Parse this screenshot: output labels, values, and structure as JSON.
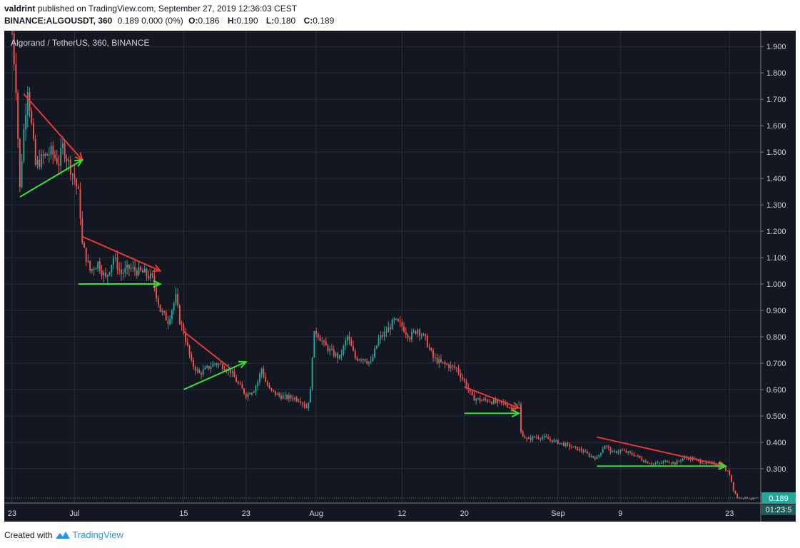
{
  "header": {
    "user": "valdrint",
    "published": "published on TradingView.com, September 27, 2019 12:36:03 CEST",
    "symbol": "BINANCE:ALGOUSDT, 360",
    "quote": "0.189 0.000 (0%)",
    "o_label": "O:",
    "o_value": "0.186",
    "h_label": "H:",
    "h_value": "0.190",
    "l_label": "L:",
    "l_value": "0.180",
    "c_label": "C:",
    "c_value": "0.189"
  },
  "footer": {
    "created_with": "Created with",
    "brand": "TradingView"
  },
  "colors": {
    "background": "#131722",
    "grid": "#2a2e39",
    "up": "#26a69a",
    "down": "#ef5350",
    "text": "#d1d4dc",
    "red_line": "#e53935",
    "green_line": "#33e233",
    "last_price": "#26a69a"
  },
  "chart_data": {
    "type": "candlestick",
    "title": "Algorand / TetherUS, 360, BINANCE",
    "ylim": [
      0.17,
      1.96
    ],
    "y_ticks": [
      "1.900",
      "1.800",
      "1.700",
      "1.600",
      "1.500",
      "1.400",
      "1.300",
      "1.200",
      "1.100",
      "1.000",
      "0.900",
      "0.800",
      "0.700",
      "0.600",
      "0.500",
      "0.400",
      "0.300"
    ],
    "x_ticks": [
      {
        "label": "23",
        "day": 0
      },
      {
        "label": "Jul",
        "day": 8
      },
      {
        "label": "15",
        "day": 22
      },
      {
        "label": "23",
        "day": 30
      },
      {
        "label": "Aug",
        "day": 39
      },
      {
        "label": "12",
        "day": 50
      },
      {
        "label": "20",
        "day": 58
      },
      {
        "label": "Sep",
        "day": 70
      },
      {
        "label": "9",
        "day": 78
      },
      {
        "label": "23",
        "day": 92
      }
    ],
    "day_range": [
      -1,
      96
    ],
    "last_price": "0.189",
    "countdown": "01:23:5",
    "price_path": [
      [
        0.0,
        1.95
      ],
      [
        0.5,
        1.75
      ],
      [
        1.0,
        1.36
      ],
      [
        1.4,
        1.55
      ],
      [
        2.0,
        1.75
      ],
      [
        2.5,
        1.6
      ],
      [
        3.0,
        1.45
      ],
      [
        4.0,
        1.48
      ],
      [
        5.0,
        1.5
      ],
      [
        6.0,
        1.46
      ],
      [
        6.5,
        1.52
      ],
      [
        7.0,
        1.48
      ],
      [
        8.0,
        1.4
      ],
      [
        8.6,
        1.33
      ],
      [
        9.0,
        1.15
      ],
      [
        10.0,
        1.05
      ],
      [
        11.0,
        1.08
      ],
      [
        12.0,
        1.02
      ],
      [
        13.0,
        1.1
      ],
      [
        14.0,
        1.04
      ],
      [
        15.0,
        1.06
      ],
      [
        16.0,
        1.05
      ],
      [
        17.0,
        1.04
      ],
      [
        18.0,
        1.02
      ],
      [
        18.5,
        0.96
      ],
      [
        19.0,
        0.9
      ],
      [
        20.0,
        0.86
      ],
      [
        21.0,
        0.95
      ],
      [
        21.5,
        0.86
      ],
      [
        22.0,
        0.82
      ],
      [
        23.0,
        0.7
      ],
      [
        24.0,
        0.66
      ],
      [
        25.0,
        0.68
      ],
      [
        26.0,
        0.7
      ],
      [
        27.0,
        0.69
      ],
      [
        28.0,
        0.67
      ],
      [
        29.0,
        0.62
      ],
      [
        30.0,
        0.58
      ],
      [
        31.0,
        0.6
      ],
      [
        31.5,
        0.63
      ],
      [
        32.0,
        0.68
      ],
      [
        32.5,
        0.63
      ],
      [
        33.0,
        0.6
      ],
      [
        34.0,
        0.58
      ],
      [
        35.0,
        0.57
      ],
      [
        36.0,
        0.57
      ],
      [
        37.0,
        0.56
      ],
      [
        37.8,
        0.53
      ],
      [
        38.3,
        0.6
      ],
      [
        38.6,
        0.8
      ],
      [
        39.0,
        0.82
      ],
      [
        40.0,
        0.77
      ],
      [
        41.0,
        0.74
      ],
      [
        42.0,
        0.72
      ],
      [
        43.0,
        0.8
      ],
      [
        44.0,
        0.72
      ],
      [
        45.0,
        0.72
      ],
      [
        46.0,
        0.7
      ],
      [
        47.0,
        0.79
      ],
      [
        48.0,
        0.82
      ],
      [
        49.0,
        0.86
      ],
      [
        50.0,
        0.84
      ],
      [
        51.0,
        0.8
      ],
      [
        52.0,
        0.83
      ],
      [
        53.0,
        0.79
      ],
      [
        54.0,
        0.72
      ],
      [
        55.0,
        0.7
      ],
      [
        56.0,
        0.69
      ],
      [
        57.0,
        0.68
      ],
      [
        58.0,
        0.63
      ],
      [
        59.0,
        0.57
      ],
      [
        60.0,
        0.56
      ],
      [
        61.0,
        0.56
      ],
      [
        62.0,
        0.55
      ],
      [
        63.0,
        0.55
      ],
      [
        64.0,
        0.53
      ],
      [
        65.0,
        0.54
      ],
      [
        65.2,
        0.44
      ],
      [
        66.0,
        0.41
      ],
      [
        67.0,
        0.42
      ],
      [
        68.0,
        0.42
      ],
      [
        69.0,
        0.41
      ],
      [
        70.0,
        0.4
      ],
      [
        71.0,
        0.39
      ],
      [
        72.0,
        0.38
      ],
      [
        73.0,
        0.37
      ],
      [
        74.0,
        0.35
      ],
      [
        75.0,
        0.34
      ],
      [
        76.0,
        0.39
      ],
      [
        77.0,
        0.36
      ],
      [
        78.0,
        0.37
      ],
      [
        79.0,
        0.36
      ],
      [
        80.0,
        0.35
      ],
      [
        81.0,
        0.33
      ],
      [
        82.0,
        0.32
      ],
      [
        83.0,
        0.32
      ],
      [
        84.0,
        0.33
      ],
      [
        85.0,
        0.32
      ],
      [
        86.0,
        0.34
      ],
      [
        87.0,
        0.34
      ],
      [
        88.0,
        0.33
      ],
      [
        89.0,
        0.32
      ],
      [
        90.0,
        0.32
      ],
      [
        91.0,
        0.31
      ],
      [
        92.0,
        0.28
      ],
      [
        92.5,
        0.22
      ],
      [
        93.0,
        0.19
      ],
      [
        94.0,
        0.19
      ],
      [
        95.0,
        0.186
      ],
      [
        95.5,
        0.189
      ]
    ],
    "trendlines": [
      {
        "color": "red",
        "from": [
          1.5,
          1.72
        ],
        "to": [
          9.0,
          1.47
        ],
        "arrow": true
      },
      {
        "color": "green",
        "from": [
          1.0,
          1.33
        ],
        "to": [
          9.0,
          1.47
        ],
        "arrow": true
      },
      {
        "color": "red",
        "from": [
          9.0,
          1.18
        ],
        "to": [
          19.0,
          1.05
        ],
        "arrow": true
      },
      {
        "color": "green",
        "from": [
          8.5,
          1.0
        ],
        "to": [
          19.0,
          1.0
        ],
        "arrow": true
      },
      {
        "color": "red",
        "from": [
          22.0,
          0.82
        ],
        "to": [
          28.0,
          0.68
        ],
        "arrow": false
      },
      {
        "color": "green",
        "from": [
          22.0,
          0.6
        ],
        "to": [
          30.0,
          0.705
        ],
        "arrow": true
      },
      {
        "color": "red",
        "from": [
          58.0,
          0.61
        ],
        "to": [
          65.0,
          0.53
        ],
        "arrow": true
      },
      {
        "color": "green",
        "from": [
          58.0,
          0.51
        ],
        "to": [
          65.0,
          0.51
        ],
        "arrow": true
      },
      {
        "color": "red",
        "from": [
          75.0,
          0.42
        ],
        "to": [
          91.5,
          0.31
        ],
        "arrow": true
      },
      {
        "color": "green",
        "from": [
          75.0,
          0.31
        ],
        "to": [
          91.5,
          0.31
        ],
        "arrow": true
      }
    ]
  }
}
